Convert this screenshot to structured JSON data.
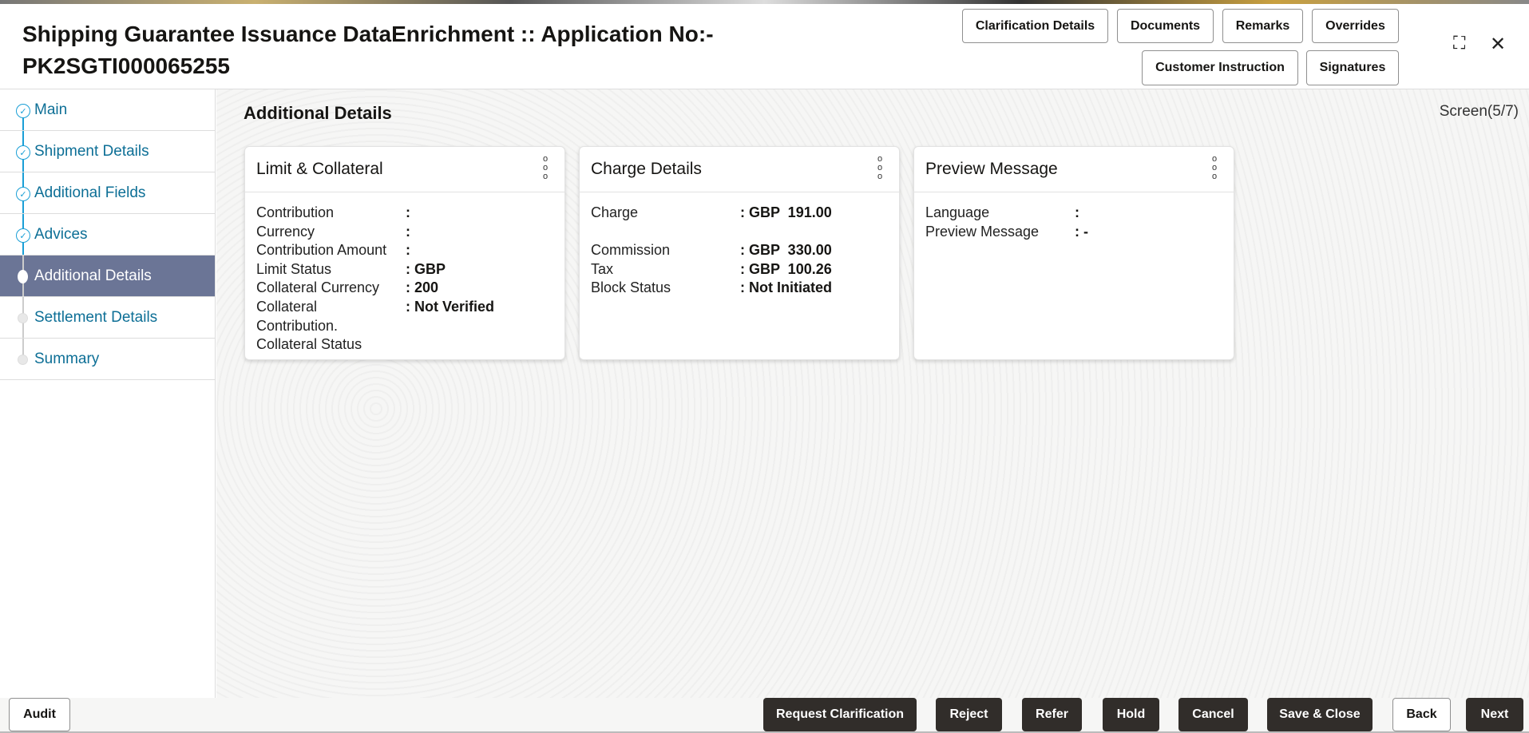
{
  "header": {
    "title_line1": "Shipping Guarantee Issuance DataEnrichment :: Application No:-",
    "title_line2": "PK2SGTI000065255",
    "buttons": {
      "clarification": "Clarification Details",
      "documents": "Documents",
      "remarks": "Remarks",
      "overrides": "Overrides",
      "customer_instruction": "Customer Instruction",
      "signatures": "Signatures"
    },
    "icons": {
      "minimize": "⛶",
      "close": "✕"
    }
  },
  "sidebar": {
    "items": [
      {
        "label": "Main",
        "state": "done"
      },
      {
        "label": "Shipment Details",
        "state": "done"
      },
      {
        "label": "Additional Fields",
        "state": "done"
      },
      {
        "label": "Advices",
        "state": "done"
      },
      {
        "label": "Additional Details",
        "state": "active"
      },
      {
        "label": "Settlement Details",
        "state": "pending"
      },
      {
        "label": "Summary",
        "state": "pending"
      }
    ]
  },
  "main": {
    "title": "Additional Details",
    "screen": "Screen(5/7)",
    "cards": [
      {
        "title": "Limit & Collateral",
        "rows": [
          {
            "k": "Contribution",
            "v": ":"
          },
          {
            "k": "Currency",
            "v": ":"
          },
          {
            "k": "Contribution Amount",
            "v": ":"
          },
          {
            "k": "Limit Status",
            "v": ": GBP"
          },
          {
            "k": "Collateral Currency",
            "v": ": 200"
          },
          {
            "k": "Collateral",
            "v": ": Not Verified"
          },
          {
            "k": "Contribution.",
            "v": ""
          },
          {
            "k": "Collateral Status",
            "v": ""
          }
        ]
      },
      {
        "title": "Charge Details",
        "rows": [
          {
            "k": "Charge",
            "v": ": GBP  191.00"
          },
          {
            "k": "Commission",
            "v": ": GBP  330.00"
          },
          {
            "k": "Tax",
            "v": ": GBP  100.26"
          },
          {
            "k": "Block Status",
            "v": ": Not Initiated"
          }
        ]
      },
      {
        "title": "Preview Message",
        "rows": [
          {
            "k": "Language",
            "v": ":"
          },
          {
            "k": "Preview Message",
            "v": ": -"
          }
        ]
      }
    ]
  },
  "footer": {
    "audit": "Audit",
    "request_clarification": "Request Clarification",
    "reject": "Reject",
    "refer": "Refer",
    "hold": "Hold",
    "cancel": "Cancel",
    "save_close": "Save & Close",
    "back": "Back",
    "next": "Next"
  }
}
